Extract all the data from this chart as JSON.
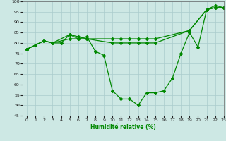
{
  "xlabel": "Humidité relative (%)",
  "bg_color": "#cde8e4",
  "grid_color": "#aacccc",
  "line_color": "#008800",
  "ylim": [
    45,
    100
  ],
  "xlim": [
    -0.5,
    23
  ],
  "yticks": [
    45,
    50,
    55,
    60,
    65,
    70,
    75,
    80,
    85,
    90,
    95,
    100
  ],
  "xticks": [
    0,
    1,
    2,
    3,
    4,
    5,
    6,
    7,
    8,
    9,
    10,
    11,
    12,
    13,
    14,
    15,
    16,
    17,
    18,
    19,
    20,
    21,
    22,
    23
  ],
  "series1_x": [
    0,
    1,
    2,
    3,
    4,
    5,
    6,
    7,
    8,
    9,
    10,
    11,
    12,
    13,
    14,
    15,
    16,
    17,
    18,
    19,
    20,
    21,
    22,
    23
  ],
  "series1_y": [
    77,
    79,
    81,
    80,
    80,
    84,
    82,
    83,
    76,
    74,
    57,
    53,
    53,
    50,
    56,
    56,
    57,
    63,
    75,
    85,
    78,
    96,
    98,
    97
  ],
  "series2_x": [
    0,
    2,
    3,
    5,
    6,
    7,
    10,
    11,
    12,
    13,
    14,
    15,
    19,
    21,
    22,
    23
  ],
  "series2_y": [
    77,
    81,
    80,
    82,
    82,
    82,
    80,
    80,
    80,
    80,
    80,
    80,
    86,
    96,
    97,
    97
  ],
  "series3_x": [
    0,
    2,
    3,
    5,
    6,
    7,
    10,
    11,
    12,
    13,
    14,
    15,
    19,
    21,
    22,
    23
  ],
  "series3_y": [
    77,
    81,
    80,
    84,
    83,
    82,
    82,
    82,
    82,
    82,
    82,
    82,
    86,
    96,
    97,
    97
  ]
}
